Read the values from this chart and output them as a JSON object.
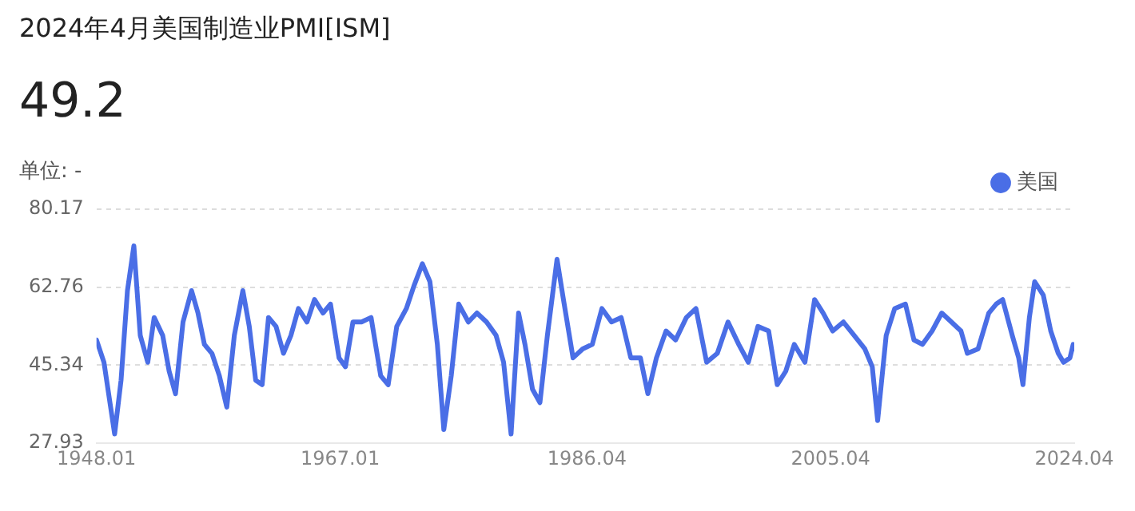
{
  "chart_data": {
    "type": "line",
    "title": "2024年4月美国制造业PMI[ISM]",
    "subtitle": "49.2",
    "annotations": [
      "单位: -"
    ],
    "x": [
      "1948-01",
      "1948-08",
      "1949-06",
      "1949-12",
      "1950-06",
      "1950-12",
      "1951-06",
      "1952-01",
      "1952-07",
      "1953-03",
      "1953-09",
      "1954-03",
      "1954-10",
      "1955-06",
      "1955-12",
      "1956-06",
      "1957-01",
      "1957-08",
      "1958-03",
      "1958-10",
      "1959-06",
      "1959-12",
      "1960-06",
      "1960-12",
      "1961-06",
      "1962-01",
      "1962-08",
      "1963-03",
      "1963-10",
      "1964-06",
      "1965-01",
      "1965-09",
      "1966-04",
      "1966-12",
      "1967-06",
      "1968-01",
      "1968-09",
      "1969-06",
      "1970-03",
      "1970-10",
      "1971-06",
      "1972-03",
      "1972-10",
      "1973-06",
      "1974-01",
      "1974-08",
      "1975-02",
      "1975-09",
      "1976-04",
      "1977-01",
      "1977-09",
      "1978-06",
      "1979-03",
      "1979-10",
      "1980-05",
      "1980-12",
      "1981-06",
      "1982-01",
      "1982-08",
      "1983-03",
      "1983-12",
      "1984-06",
      "1985-03",
      "1985-12",
      "1986-09",
      "1987-06",
      "1988-03",
      "1988-12",
      "1989-09",
      "1990-06",
      "1991-01",
      "1991-09",
      "1992-06",
      "1993-03",
      "1994-01",
      "1994-10",
      "1995-08",
      "1996-06",
      "1997-04",
      "1998-02",
      "1998-11",
      "1999-08",
      "2000-06",
      "2001-02",
      "2001-10",
      "2002-06",
      "2003-04",
      "2004-01",
      "2004-09",
      "2005-06",
      "2006-04",
      "2007-02",
      "2007-12",
      "2008-07",
      "2008-12",
      "2009-08",
      "2010-04",
      "2011-02",
      "2011-10",
      "2012-06",
      "2013-03",
      "2013-12",
      "2014-09",
      "2015-06",
      "2015-12",
      "2016-10",
      "2017-08",
      "2018-03",
      "2018-09",
      "2019-06",
      "2019-12",
      "2020-04",
      "2020-10",
      "2021-03",
      "2021-11",
      "2022-06",
      "2023-01",
      "2023-06",
      "2023-12",
      "2024-03",
      "2024-04"
    ],
    "series": [
      {
        "name": "美国",
        "color": "#4a6ee6",
        "values": [
          51,
          46,
          30,
          42,
          62,
          72,
          52,
          46,
          56,
          52,
          44,
          39,
          55,
          62,
          57,
          50,
          48,
          43,
          36,
          52,
          62,
          54,
          42,
          41,
          56,
          54,
          48,
          52,
          58,
          55,
          60,
          57,
          59,
          47,
          45,
          55,
          55,
          56,
          43,
          41,
          54,
          58,
          63,
          68,
          64,
          50,
          31,
          43,
          59,
          55,
          57,
          55,
          52,
          46,
          30,
          57,
          50,
          40,
          37,
          52,
          69,
          60,
          47,
          49,
          50,
          58,
          55,
          56,
          47,
          47,
          39,
          47,
          53,
          51,
          56,
          58,
          46,
          48,
          55,
          50,
          46,
          54,
          53,
          41,
          44,
          50,
          46,
          60,
          57,
          53,
          55,
          52,
          49,
          45,
          33,
          52,
          58,
          59,
          51,
          50,
          53,
          57,
          55,
          53,
          48,
          49,
          57,
          59,
          60,
          52,
          47,
          41,
          56,
          64,
          61,
          53,
          48,
          46,
          47,
          50,
          49
        ]
      }
    ],
    "xlim": [
      "1948-01",
      "2024-04"
    ],
    "xticks": [
      {
        "value": "1948-01",
        "label": "1948.01"
      },
      {
        "value": "1967-01",
        "label": "1967.01"
      },
      {
        "value": "1986-04",
        "label": "1986.04"
      },
      {
        "value": "2005-04",
        "label": "2005.04"
      },
      {
        "value": "2024-04",
        "label": "2024.04"
      }
    ],
    "ylim": [
      27.93,
      80.17
    ],
    "yticks": [
      27.93,
      45.34,
      62.76,
      80.17
    ],
    "grid": "y",
    "legend": "top right",
    "line_style": "solid",
    "marker": "none"
  }
}
